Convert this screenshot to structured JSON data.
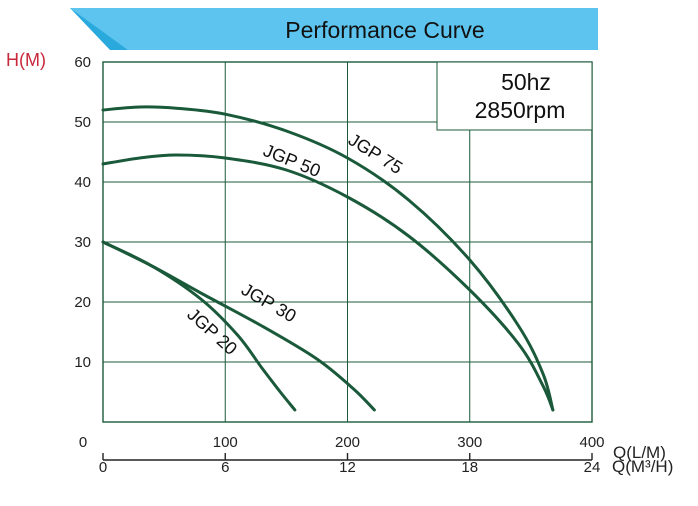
{
  "chart_data": {
    "type": "line",
    "title": "Performance Curve",
    "ylabel": "H(M)",
    "xlabel": "Q(L/M)",
    "x2label": "Q(M³/H)",
    "xlim": [
      0,
      400
    ],
    "ylim": [
      0,
      60
    ],
    "x2lim": [
      0,
      24
    ],
    "xticks": [
      "0",
      "100",
      "200",
      "300",
      "400"
    ],
    "x2ticks": [
      "0",
      "6",
      "12",
      "18",
      "24"
    ],
    "yticks": [
      "10",
      "20",
      "30",
      "40",
      "50",
      "60"
    ],
    "grid": true,
    "speed_box": {
      "freq": "50hz",
      "rpm": "2850rpm"
    },
    "series": [
      {
        "name": "JGP 20",
        "color": "#1a5a3a",
        "x": [
          0,
          40,
          80,
          110,
          130,
          145,
          157
        ],
        "y": [
          30,
          26,
          20.5,
          14.5,
          9,
          5,
          2
        ]
      },
      {
        "name": "JGP 30",
        "color": "#1a5a3a",
        "x": [
          0,
          40,
          80,
          130,
          175,
          205,
          222
        ],
        "y": [
          30,
          26,
          21.5,
          16,
          10.5,
          5.5,
          2
        ]
      },
      {
        "name": "JGP 50",
        "color": "#1a5a3a",
        "x": [
          0,
          30,
          60,
          100,
          150,
          200,
          250,
          300,
          340,
          360,
          368
        ],
        "y": [
          43,
          44,
          44.5,
          44,
          42,
          37.5,
          31,
          22,
          13,
          6,
          2
        ]
      },
      {
        "name": "JGP 75",
        "color": "#1a5a3a",
        "x": [
          0,
          30,
          60,
          100,
          150,
          200,
          250,
          300,
          340,
          360,
          368
        ],
        "y": [
          52,
          52.5,
          52.3,
          51.3,
          48.5,
          44,
          37,
          27,
          16,
          8,
          2
        ]
      }
    ]
  }
}
